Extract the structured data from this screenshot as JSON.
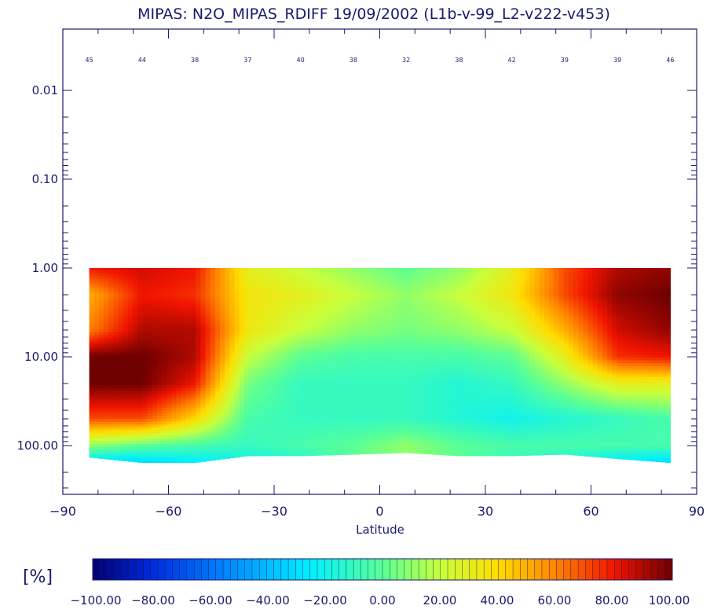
{
  "chart_data": {
    "type": "heatmap",
    "title": "MIPAS: N2O_MIPAS_RDIFF 19/09/2002 (L1b-v-99_L2-v222-v453)",
    "xlabel": "Latitude",
    "ylabel": "",
    "xlim": [
      -90,
      90
    ],
    "ylim": [
      0.01,
      300
    ],
    "y_scale": "log",
    "y_reversed": true,
    "x_ticks": [
      "-90",
      "-60",
      "-30",
      "0",
      "30",
      "60",
      "90"
    ],
    "y_ticks": [
      {
        "value": 0.01,
        "label": "0.01"
      },
      {
        "value": 0.1,
        "label": "0.10"
      },
      {
        "value": 1,
        "label": "1.00"
      },
      {
        "value": 10,
        "label": "10.00"
      },
      {
        "value": 100,
        "label": "100.00"
      }
    ],
    "band_latitudes": [
      -82.5,
      -67.5,
      -52.5,
      -37.5,
      -22.5,
      -7.5,
      7.5,
      22.5,
      37.5,
      52.5,
      67.5,
      82.5
    ],
    "counts": [
      "45",
      "44",
      "38",
      "37",
      "40",
      "38",
      "32",
      "38",
      "42",
      "39",
      "39",
      "46"
    ],
    "field_top_pressure": [
      1,
      1,
      1,
      1,
      1,
      1,
      1,
      1,
      1,
      1,
      1,
      1
    ],
    "field_bottom_pressure": [
      135,
      155,
      155,
      130,
      130,
      125,
      120,
      130,
      130,
      125,
      140,
      155
    ],
    "pressure_levels": [
      1,
      2,
      5,
      10,
      20,
      50,
      100,
      150
    ],
    "values": [
      [
        80,
        85,
        80,
        30,
        20,
        10,
        0,
        10,
        30,
        70,
        90,
        95
      ],
      [
        50,
        80,
        75,
        35,
        30,
        20,
        10,
        20,
        35,
        70,
        95,
        100
      ],
      [
        60,
        90,
        90,
        35,
        20,
        10,
        5,
        10,
        20,
        50,
        85,
        95
      ],
      [
        100,
        100,
        90,
        20,
        0,
        -5,
        -5,
        -5,
        0,
        30,
        75,
        80
      ],
      [
        100,
        100,
        80,
        5,
        -10,
        -10,
        -10,
        -15,
        -10,
        10,
        30,
        30
      ],
      [
        70,
        70,
        40,
        -5,
        -10,
        -10,
        -10,
        -15,
        -20,
        -15,
        -10,
        -5
      ],
      [
        10,
        0,
        -5,
        -10,
        -5,
        0,
        10,
        0,
        -5,
        -5,
        -5,
        -5
      ],
      [
        -30,
        -30,
        -25,
        -20,
        -15,
        0,
        10,
        0,
        -10,
        -15,
        -25,
        -30
      ]
    ],
    "colorbar": {
      "label": "[%]",
      "min": -100,
      "max": 100,
      "ticks": [
        "-100.00",
        "-80.00",
        "-60.00",
        "-40.00",
        "-20.00",
        "0.00",
        "20.00",
        "40.00",
        "60.00",
        "80.00",
        "100.00"
      ]
    }
  }
}
